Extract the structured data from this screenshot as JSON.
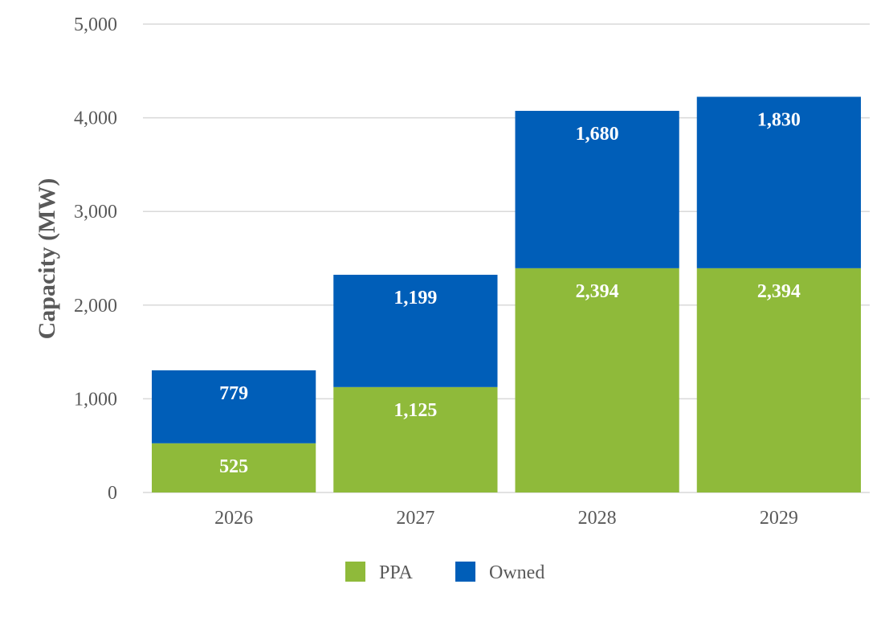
{
  "chart_data": {
    "type": "bar",
    "stacked": true,
    "title": "",
    "xlabel": "",
    "ylabel": "Capacity (MW)",
    "ylim": [
      0,
      5000
    ],
    "yticks": [
      0,
      1000,
      2000,
      3000,
      4000,
      5000
    ],
    "ytick_labels": [
      "0",
      "1,000",
      "2,000",
      "3,000",
      "4,000",
      "5,000"
    ],
    "categories": [
      "2026",
      "2027",
      "2028",
      "2029"
    ],
    "series": [
      {
        "name": "PPA",
        "color": "#8fba3a",
        "values": [
          525,
          1125,
          2394,
          2394
        ],
        "labels": [
          "525",
          "1,125",
          "2,394",
          "2,394"
        ]
      },
      {
        "name": "Owned",
        "color": "#005eb8",
        "values": [
          779,
          1199,
          1680,
          1830
        ],
        "labels": [
          "779",
          "1,199",
          "1,680",
          "1,830"
        ]
      }
    ],
    "grid": true,
    "legend_position": "bottom"
  }
}
